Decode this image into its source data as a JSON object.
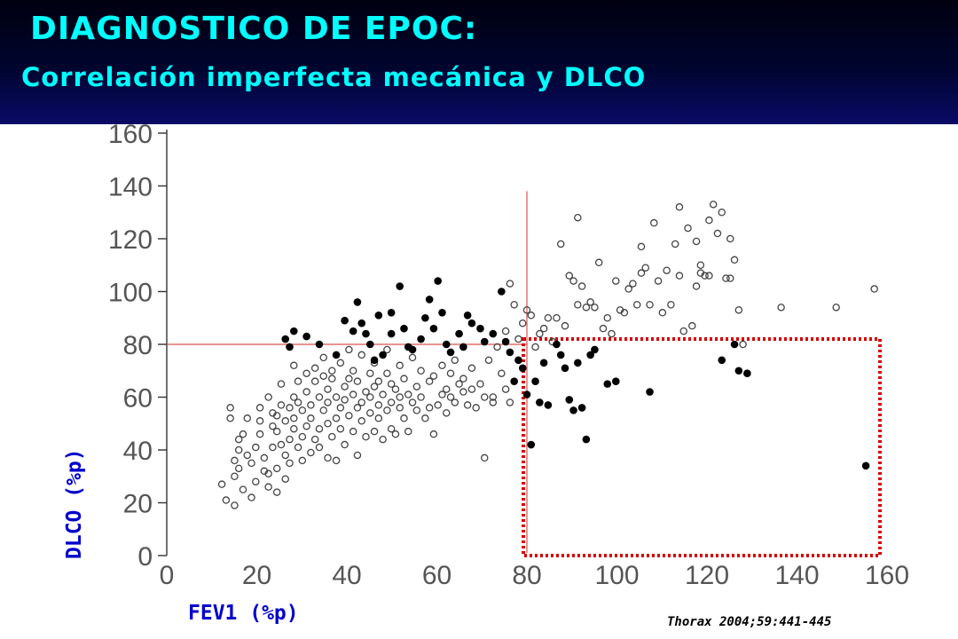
{
  "slide": {
    "title": "DIAGNOSTICO DE EPOC:",
    "subtitle": "Correlación imperfecta mecánica y DLCO",
    "source": "Thorax 2004;59:441-445"
  },
  "chart_data": {
    "type": "scatter",
    "xlabel": "FEV1 (%p)",
    "ylabel": "DLCO (%p)",
    "xlim": [
      0,
      160
    ],
    "ylim": [
      0,
      160
    ],
    "xticks": [
      0,
      20,
      40,
      60,
      80,
      100,
      120,
      140,
      160
    ],
    "yticks": [
      0,
      20,
      40,
      60,
      80,
      100,
      120,
      140,
      160
    ],
    "grid": false,
    "reference_lines": {
      "x": 80,
      "y": 80,
      "color": "#d9534f"
    },
    "highlight_box": {
      "x": [
        80,
        160
      ],
      "y": [
        0,
        82
      ],
      "style": "dotted",
      "color": "#d40000"
    },
    "series": [
      {
        "marker": "open-circle",
        "points": [
          [
            13,
            27
          ],
          [
            14,
            21
          ],
          [
            15,
            56
          ],
          [
            15,
            52
          ],
          [
            16,
            19
          ],
          [
            16,
            36
          ],
          [
            16,
            30
          ],
          [
            17,
            44
          ],
          [
            17,
            40
          ],
          [
            17,
            33
          ],
          [
            18,
            46
          ],
          [
            18,
            25
          ],
          [
            19,
            52
          ],
          [
            19,
            38
          ],
          [
            20,
            35
          ],
          [
            20,
            22
          ],
          [
            21,
            28
          ],
          [
            21,
            41
          ],
          [
            22,
            51
          ],
          [
            22,
            46
          ],
          [
            22,
            56
          ],
          [
            23,
            32
          ],
          [
            23,
            37
          ],
          [
            24,
            31
          ],
          [
            24,
            60
          ],
          [
            24,
            26
          ],
          [
            25,
            54
          ],
          [
            25,
            49
          ],
          [
            25,
            41
          ],
          [
            26,
            47
          ],
          [
            26,
            53
          ],
          [
            26,
            33
          ],
          [
            26,
            24
          ],
          [
            27,
            57
          ],
          [
            27,
            65
          ],
          [
            27,
            42
          ],
          [
            28,
            29
          ],
          [
            28,
            51
          ],
          [
            28,
            38
          ],
          [
            29,
            44
          ],
          [
            29,
            56
          ],
          [
            29,
            35
          ],
          [
            30,
            60
          ],
          [
            30,
            52
          ],
          [
            30,
            48
          ],
          [
            30,
            72
          ],
          [
            31,
            41
          ],
          [
            31,
            58
          ],
          [
            31,
            66
          ],
          [
            32,
            36
          ],
          [
            32,
            55
          ],
          [
            32,
            45
          ],
          [
            33,
            69
          ],
          [
            33,
            49
          ],
          [
            33,
            62
          ],
          [
            34,
            39
          ],
          [
            34,
            52
          ],
          [
            34,
            57
          ],
          [
            35,
            66
          ],
          [
            35,
            44
          ],
          [
            35,
            71
          ],
          [
            36,
            60
          ],
          [
            36,
            48
          ],
          [
            36,
            41
          ],
          [
            37,
            68
          ],
          [
            37,
            55
          ],
          [
            37,
            75
          ],
          [
            38,
            37
          ],
          [
            38,
            50
          ],
          [
            38,
            63
          ],
          [
            38,
            58
          ],
          [
            39,
            45
          ],
          [
            39,
            70
          ],
          [
            39,
            67
          ],
          [
            40,
            52
          ],
          [
            40,
            60
          ],
          [
            40,
            36
          ],
          [
            41,
            56
          ],
          [
            41,
            48
          ],
          [
            41,
            73
          ],
          [
            42,
            64
          ],
          [
            42,
            42
          ],
          [
            42,
            59
          ],
          [
            43,
            53
          ],
          [
            43,
            67
          ],
          [
            43,
            78
          ],
          [
            44,
            47
          ],
          [
            44,
            61
          ],
          [
            44,
            70
          ],
          [
            45,
            56
          ],
          [
            45,
            38
          ],
          [
            45,
            66
          ],
          [
            46,
            51
          ],
          [
            46,
            58
          ],
          [
            46,
            76
          ],
          [
            47,
            62
          ],
          [
            47,
            45
          ],
          [
            48,
            54
          ],
          [
            48,
            69
          ],
          [
            48,
            60
          ],
          [
            49,
            47
          ],
          [
            49,
            64
          ],
          [
            49,
            73
          ],
          [
            50,
            57
          ],
          [
            50,
            52
          ],
          [
            50,
            66
          ],
          [
            51,
            61
          ],
          [
            51,
            44
          ],
          [
            52,
            55
          ],
          [
            52,
            69
          ],
          [
            52,
            78
          ],
          [
            53,
            48
          ],
          [
            53,
            58
          ],
          [
            53,
            65
          ],
          [
            54,
            63
          ],
          [
            54,
            46
          ],
          [
            55,
            72
          ],
          [
            55,
            56
          ],
          [
            55,
            60
          ],
          [
            56,
            52
          ],
          [
            56,
            67
          ],
          [
            57,
            61
          ],
          [
            57,
            47
          ],
          [
            58,
            75
          ],
          [
            58,
            58
          ],
          [
            59,
            55
          ],
          [
            59,
            64
          ],
          [
            60,
            60
          ],
          [
            60,
            70
          ],
          [
            61,
            52
          ],
          [
            62,
            66
          ],
          [
            62,
            56
          ],
          [
            63,
            46
          ],
          [
            63,
            68
          ],
          [
            64,
            57
          ],
          [
            65,
            72
          ],
          [
            65,
            61
          ],
          [
            66,
            63
          ],
          [
            66,
            54
          ],
          [
            67,
            69
          ],
          [
            67,
            60
          ],
          [
            68,
            74
          ],
          [
            68,
            58
          ],
          [
            69,
            65
          ],
          [
            70,
            62
          ],
          [
            70,
            67
          ],
          [
            71,
            57
          ],
          [
            72,
            71
          ],
          [
            72,
            63
          ],
          [
            73,
            56
          ],
          [
            74,
            65
          ],
          [
            75,
            37
          ],
          [
            75,
            60
          ],
          [
            76,
            74
          ],
          [
            77,
            60
          ],
          [
            77,
            58
          ],
          [
            78,
            79
          ],
          [
            79,
            69
          ],
          [
            80,
            63
          ],
          [
            80,
            85
          ],
          [
            81,
            58
          ],
          [
            81,
            103
          ],
          [
            82,
            95
          ],
          [
            83,
            82
          ],
          [
            84,
            88
          ],
          [
            85,
            93
          ],
          [
            86,
            91
          ],
          [
            87,
            79
          ],
          [
            88,
            84
          ],
          [
            89,
            86
          ],
          [
            90,
            90
          ],
          [
            91,
            81
          ],
          [
            92,
            90
          ],
          [
            93,
            118
          ],
          [
            94,
            87
          ],
          [
            95,
            106
          ],
          [
            96,
            104
          ],
          [
            97,
            128
          ],
          [
            97,
            95
          ],
          [
            98,
            102
          ],
          [
            99,
            94
          ],
          [
            100,
            96
          ],
          [
            101,
            94
          ],
          [
            102,
            111
          ],
          [
            103,
            86
          ],
          [
            104,
            90
          ],
          [
            105,
            84
          ],
          [
            106,
            104
          ],
          [
            107,
            93
          ],
          [
            108,
            92
          ],
          [
            109,
            101
          ],
          [
            110,
            103
          ],
          [
            111,
            95
          ],
          [
            112,
            117
          ],
          [
            112,
            107
          ],
          [
            113,
            109
          ],
          [
            114,
            95
          ],
          [
            115,
            126
          ],
          [
            116,
            104
          ],
          [
            117,
            92
          ],
          [
            118,
            108
          ],
          [
            119,
            95
          ],
          [
            120,
            118
          ],
          [
            121,
            106
          ],
          [
            121,
            132
          ],
          [
            122,
            85
          ],
          [
            123,
            124
          ],
          [
            124,
            87
          ],
          [
            125,
            119
          ],
          [
            125,
            102
          ],
          [
            126,
            110
          ],
          [
            126,
            107
          ],
          [
            127,
            106
          ],
          [
            128,
            127
          ],
          [
            128,
            106
          ],
          [
            129,
            133
          ],
          [
            130,
            122
          ],
          [
            131,
            130
          ],
          [
            132,
            105
          ],
          [
            133,
            120
          ],
          [
            133,
            105
          ],
          [
            134,
            112
          ],
          [
            135,
            93
          ],
          [
            136,
            80
          ],
          [
            145,
            94
          ],
          [
            158,
            94
          ],
          [
            167,
            101
          ]
        ]
      },
      {
        "marker": "filled-circle",
        "points": [
          [
            28,
            82
          ],
          [
            29,
            79
          ],
          [
            30,
            85
          ],
          [
            33,
            83
          ],
          [
            36,
            80
          ],
          [
            40,
            76
          ],
          [
            42,
            89
          ],
          [
            44,
            85
          ],
          [
            45,
            96
          ],
          [
            46,
            88
          ],
          [
            47,
            84
          ],
          [
            48,
            80
          ],
          [
            49,
            74
          ],
          [
            50,
            91
          ],
          [
            51,
            76
          ],
          [
            53,
            84
          ],
          [
            53,
            92
          ],
          [
            55,
            102
          ],
          [
            56,
            86
          ],
          [
            57,
            79
          ],
          [
            58,
            78
          ],
          [
            60,
            82
          ],
          [
            61,
            90
          ],
          [
            62,
            97
          ],
          [
            63,
            86
          ],
          [
            64,
            104
          ],
          [
            65,
            92
          ],
          [
            66,
            80
          ],
          [
            67,
            77
          ],
          [
            69,
            84
          ],
          [
            70,
            79
          ],
          [
            71,
            91
          ],
          [
            72,
            88
          ],
          [
            74,
            86
          ],
          [
            75,
            81
          ],
          [
            77,
            84
          ],
          [
            79,
            100
          ],
          [
            80,
            81
          ],
          [
            81,
            77
          ],
          [
            82,
            66
          ],
          [
            83,
            74
          ],
          [
            84,
            71
          ],
          [
            85,
            61
          ],
          [
            86,
            42
          ],
          [
            87,
            66
          ],
          [
            88,
            58
          ],
          [
            89,
            73
          ],
          [
            90,
            57
          ],
          [
            92,
            80
          ],
          [
            93,
            76
          ],
          [
            94,
            71
          ],
          [
            95,
            59
          ],
          [
            96,
            55
          ],
          [
            97,
            73
          ],
          [
            98,
            56
          ],
          [
            99,
            44
          ],
          [
            100,
            76
          ],
          [
            101,
            78
          ],
          [
            104,
            65
          ],
          [
            106,
            66
          ],
          [
            114,
            62
          ],
          [
            131,
            74
          ],
          [
            134,
            80
          ],
          [
            135,
            70
          ],
          [
            137,
            69
          ],
          [
            165,
            34
          ]
        ]
      }
    ]
  }
}
